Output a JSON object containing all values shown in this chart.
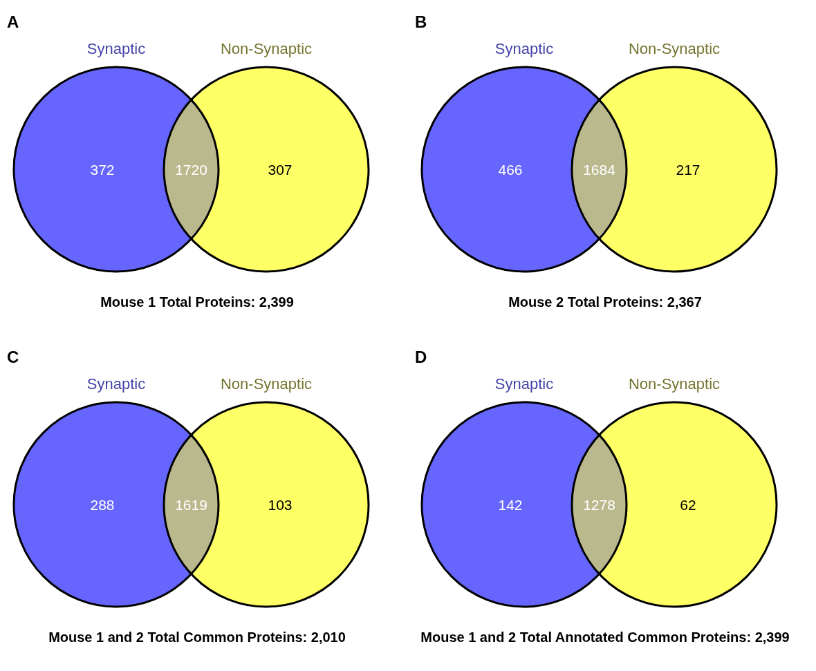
{
  "chart_data": [
    {
      "type": "other",
      "title": "Mouse 1 Total Proteins: 2,399",
      "annotations": [
        "A"
      ],
      "categories": [
        "Synaptic",
        null,
        "Non-Synaptic"
      ],
      "values": [
        372,
        1720,
        307
      ],
      "colors": [
        "#6666ff",
        "#bab98e",
        "#ffff66"
      ],
      "data_labels": true
    },
    {
      "type": "other",
      "title": "Mouse 2 Total Proteins: 2,367",
      "annotations": [
        "B"
      ],
      "categories": [
        "Synaptic",
        null,
        "Non-Synaptic"
      ],
      "values": [
        466,
        1684,
        217
      ],
      "colors": [
        "#6666ff",
        "#bab98e",
        "#ffff66"
      ],
      "data_labels": true
    },
    {
      "type": "other",
      "title": "Mouse 1 and 2 Total Common Proteins: 2,010",
      "annotations": [
        "C"
      ],
      "categories": [
        "Synaptic",
        null,
        "Non-Synaptic"
      ],
      "values": [
        288,
        1619,
        103
      ],
      "colors": [
        "#6666ff",
        "#bab98e",
        "#ffff66"
      ],
      "data_labels": true
    },
    {
      "type": "other",
      "title": "Mouse 1 and 2 Total Annotated Common Proteins: 2,399",
      "annotations": [
        "D"
      ],
      "categories": [
        "Synaptic",
        null,
        "Non-Synaptic"
      ],
      "values": [
        142,
        1278,
        62
      ],
      "colors": [
        "#6666ff",
        "#bab98e",
        "#ffff66"
      ],
      "data_labels": true
    }
  ]
}
